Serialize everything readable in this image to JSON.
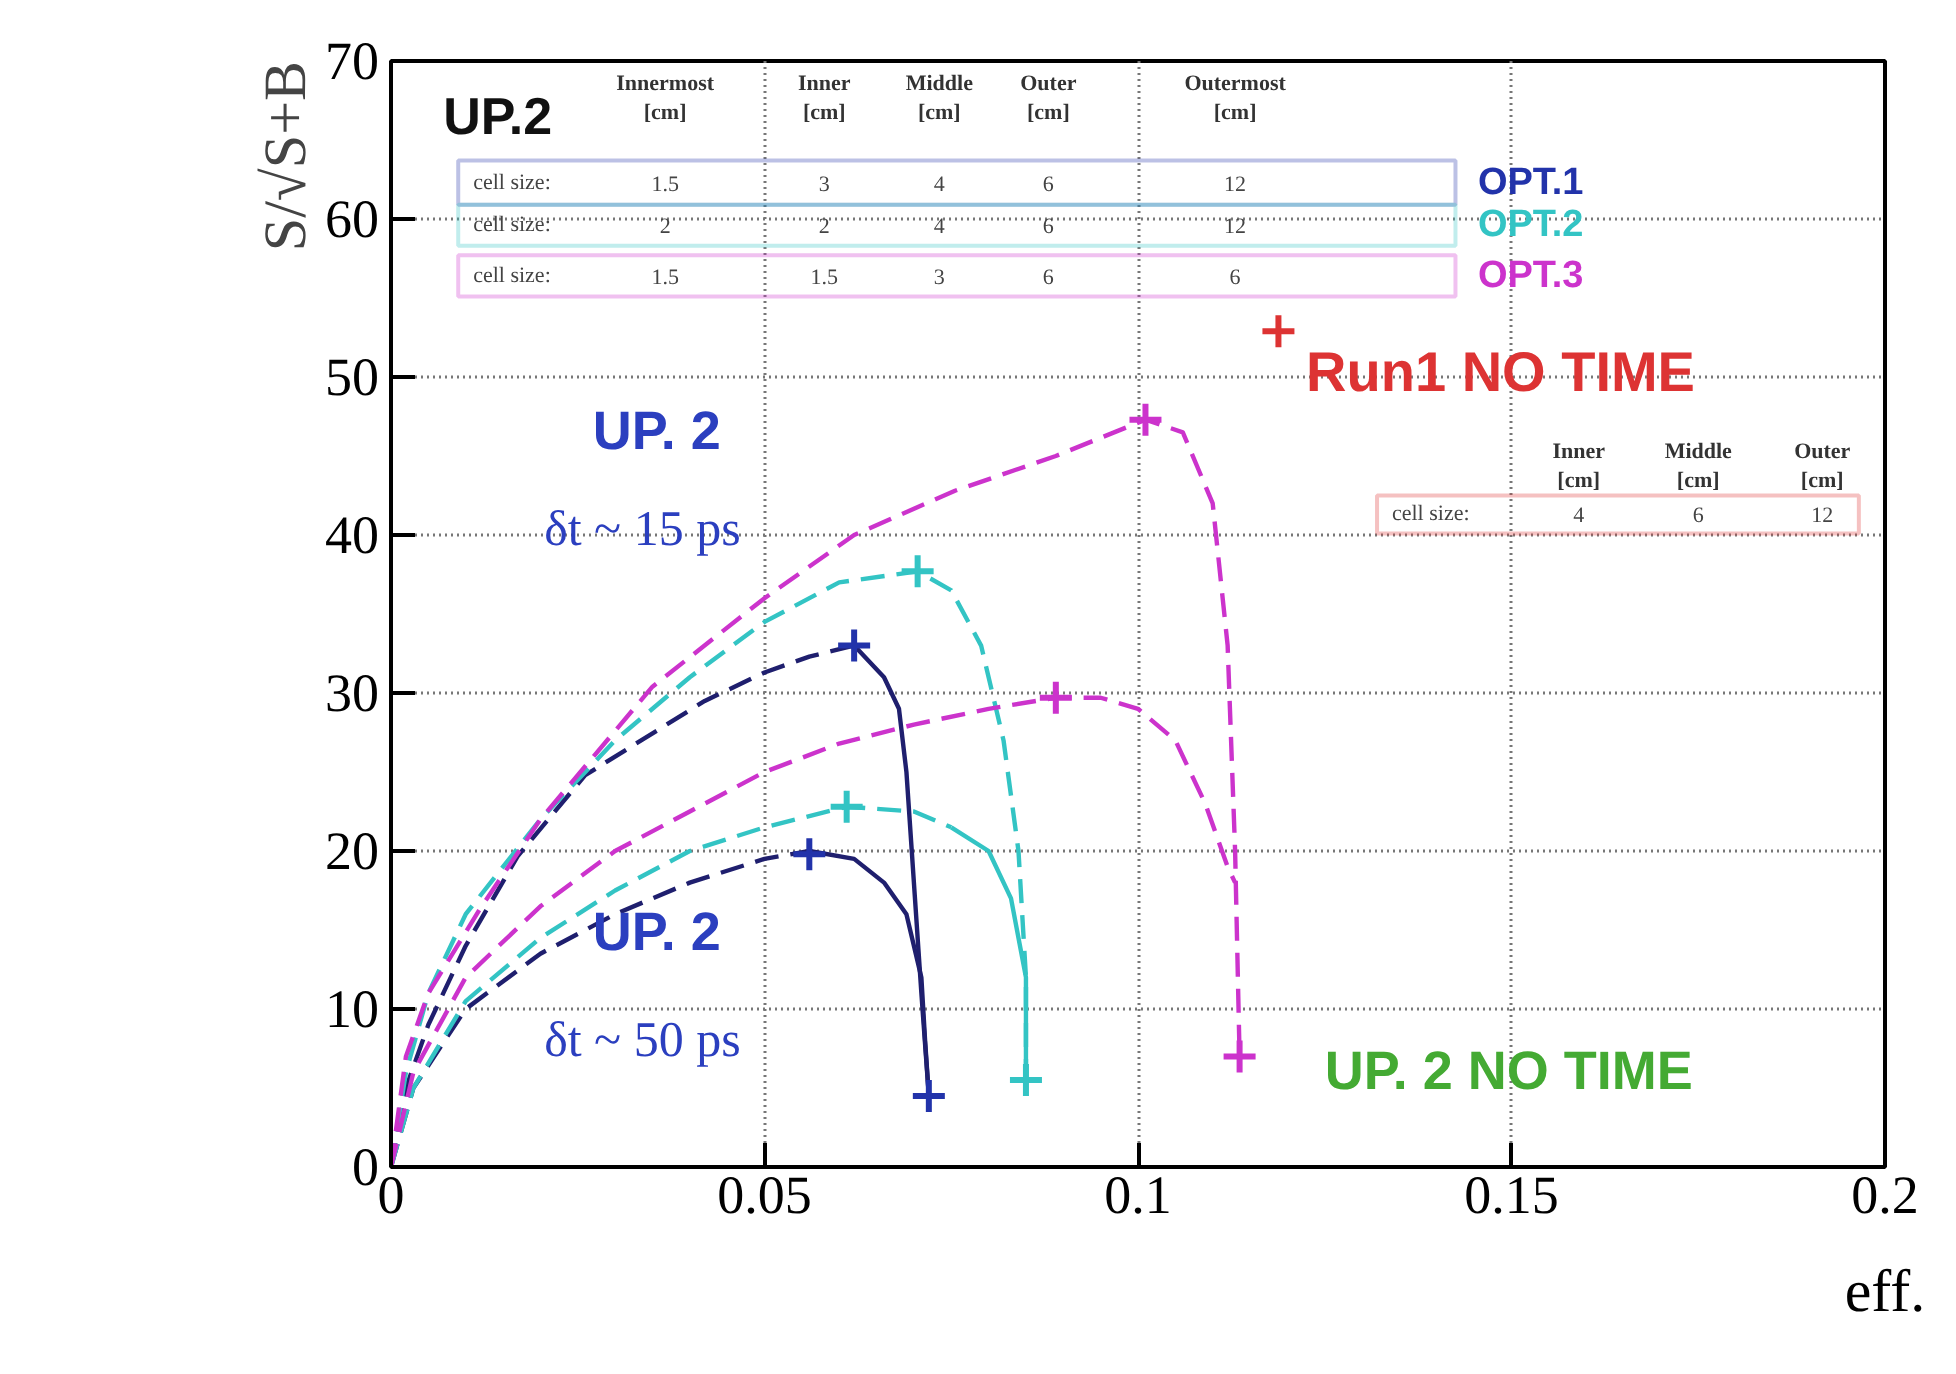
{
  "chart_data": {
    "type": "line",
    "xlabel": "eff.",
    "ylabel": "S/√S+B",
    "xlim": [
      0,
      0.2
    ],
    "xticks": [
      0,
      0.05,
      0.1,
      0.15,
      0.2
    ],
    "ylim": [
      0,
      70
    ],
    "yticks": [
      0,
      10,
      20,
      30,
      40,
      50,
      60,
      70
    ],
    "grid": true,
    "series": [
      {
        "line_style": "dashed",
        "color": "#1f1f6e",
        "x": [
          0,
          0.002,
          0.005,
          0.01,
          0.017,
          0.026,
          0.042,
          0.05,
          0.056,
          0.062
        ],
        "values": [
          0,
          5,
          9,
          14,
          19.7,
          24.8,
          29.5,
          31.3,
          32.3,
          33
        ]
      },
      {
        "line_style": "solid",
        "color": "#1f1f6e",
        "x": [
          0.062,
          0.066,
          0.068,
          0.069,
          0.07,
          0.071,
          0.072
        ],
        "values": [
          33,
          31,
          29,
          25,
          18,
          11,
          4.5
        ]
      },
      {
        "line_style": "dashed",
        "color": "#1f1f6e",
        "x": [
          0,
          0.003,
          0.01,
          0.02,
          0.03,
          0.04,
          0.05,
          0.056
        ],
        "values": [
          0,
          5,
          10,
          13.5,
          16,
          18,
          19.5,
          20
        ]
      },
      {
        "line_style": "solid",
        "color": "#1f1f6e",
        "x": [
          0.056,
          0.062,
          0.066,
          0.069,
          0.071,
          0.0715,
          0.072
        ],
        "values": [
          20,
          19.5,
          18,
          16,
          12,
          8,
          4.5
        ]
      },
      {
        "line_style": "dashed",
        "color": "#33c4c4",
        "x": [
          0,
          0.002,
          0.005,
          0.01,
          0.02,
          0.03,
          0.04,
          0.05,
          0.06,
          0.0705,
          0.075,
          0.079,
          0.082,
          0.084,
          0.085,
          0.085
        ],
        "values": [
          0,
          6,
          11,
          16,
          22,
          27,
          31,
          34.5,
          37,
          37.7,
          36.5,
          33,
          27,
          20,
          12,
          5.5
        ]
      },
      {
        "line_style": "dashed",
        "color": "#33c4c4",
        "x": [
          0,
          0.003,
          0.01,
          0.02,
          0.03,
          0.04,
          0.05,
          0.061,
          0.07,
          0.075
        ],
        "values": [
          0,
          5,
          10.5,
          14.5,
          17.5,
          20,
          21.5,
          22.8,
          22.5,
          21.5
        ]
      },
      {
        "line_style": "solid",
        "color": "#33c4c4",
        "x": [
          0.075,
          0.08,
          0.083,
          0.085,
          0.085
        ],
        "values": [
          21.5,
          20,
          17,
          12,
          5.5
        ]
      },
      {
        "line_style": "dashed",
        "color": "#cc33cc",
        "x": [
          0,
          0.002,
          0.005,
          0.012,
          0.02,
          0.035,
          0.05,
          0.062,
          0.0755,
          0.089,
          0.101,
          0.106,
          0.11,
          0.112,
          0.113,
          0.1136
        ],
        "values": [
          0,
          7,
          11,
          16.4,
          22,
          30.4,
          36,
          40,
          42.8,
          45,
          47.3,
          46.5,
          42,
          33,
          20,
          7
        ]
      },
      {
        "line_style": "dashed",
        "color": "#cc33cc",
        "x": [
          0,
          0.003,
          0.01,
          0.02,
          0.03,
          0.04,
          0.05,
          0.06,
          0.07,
          0.08,
          0.089,
          0.095,
          0.1,
          0.105,
          0.109,
          0.112,
          0.113
        ],
        "values": [
          0,
          6,
          12,
          16.5,
          20,
          22.5,
          25,
          26.8,
          28,
          29,
          29.7,
          29.7,
          29,
          27,
          23,
          19,
          18
        ]
      },
      {
        "type": "scatter",
        "marker": "cross",
        "name": "OPT.1",
        "color": "#2233aa",
        "x": [
          0.062,
          0.056,
          0.072
        ],
        "values": [
          33,
          19.8,
          4.5
        ]
      },
      {
        "type": "scatter",
        "marker": "cross",
        "name": "OPT.2",
        "color": "#33c4c4",
        "x": [
          0.0705,
          0.061,
          0.085
        ],
        "values": [
          37.7,
          22.8,
          5.5
        ]
      },
      {
        "type": "scatter",
        "marker": "cross",
        "name": "OPT.3",
        "color": "#cc33cc",
        "x": [
          0.101,
          0.089,
          0.1136
        ],
        "values": [
          47.3,
          29.7,
          7
        ]
      },
      {
        "type": "scatter",
        "marker": "cross",
        "name": "Run1 NO TIME",
        "color": "#dd3333",
        "x": [
          0.1188
        ],
        "values": [
          52.9
        ]
      }
    ],
    "annotations": [
      "UP.2",
      "Innermost\n[cm]",
      "Inner\n[cm]",
      "Middle\n[cm]",
      "Outer\n[cm]",
      "Outermost\n[cm]",
      "cell size:",
      "1.5",
      "3",
      "4",
      "6",
      "12",
      "cell size:",
      "2",
      "2",
      "4",
      "6",
      "12",
      "cell size:",
      "1.5",
      "1.5",
      "3",
      "6",
      "6",
      "Inner\n[cm]",
      "Middle\n[cm]",
      "Outer\n[cm]",
      "cell size:",
      "4",
      "6",
      "12",
      "UP. 2",
      "δt ~ 15 ps",
      "UP. 2",
      "δt ~ 50 ps",
      "UP. 2 NO TIME"
    ]
  }
}
